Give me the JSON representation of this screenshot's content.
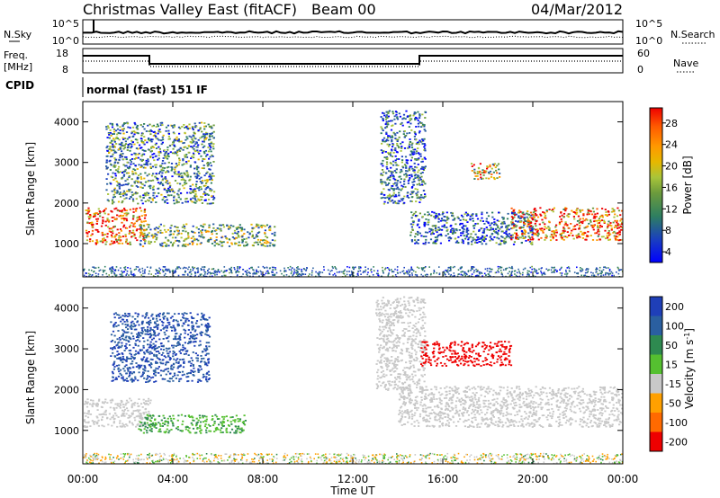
{
  "header": {
    "title": "Christmas Valley East (fitACF)",
    "beam": "Beam 00",
    "date": "04/Mar/2012"
  },
  "noise_panel": {
    "left_label": "N.Sky",
    "right_label": "N.Search",
    "left_ticks": [
      "10^5",
      "10^0"
    ],
    "right_ticks": [
      "10^5",
      "10^0"
    ]
  },
  "freq_panel": {
    "left_label_line1": "Freq.",
    "left_label_line2": "[MHz]",
    "right_label": "Nave",
    "left_ticks": [
      "18",
      "8"
    ],
    "right_ticks": [
      "60",
      "0"
    ]
  },
  "cpid": {
    "label": "CPID",
    "mode": "normal (fast) 151 IF"
  },
  "chart_data": [
    {
      "type": "heatmap",
      "name": "power",
      "ylabel": "Slant Range [km]",
      "xlabel": "",
      "xlim": [
        "00:00",
        "24:00"
      ],
      "ylim": [
        180,
        4500
      ],
      "yticks": [
        "1000",
        "2000",
        "3000",
        "4000"
      ],
      "colorbar": {
        "label": "Power [dB]",
        "ticks": [
          "4",
          "8",
          "12",
          "16",
          "20",
          "24",
          "28"
        ],
        "colors": [
          "#0000ff",
          "#1a3fbf",
          "#2a5fa0",
          "#2e7f60",
          "#6c9b3c",
          "#a8c43a",
          "#e6b800",
          "#ff9900",
          "#ff5a00",
          "#ee0000"
        ]
      },
      "regions": [
        {
          "t": [
            0.1,
            2.8
          ],
          "r": [
            1000,
            1900
          ],
          "level": 26
        },
        {
          "t": [
            1.0,
            5.8
          ],
          "r": [
            2000,
            4000
          ],
          "level": 12
        },
        {
          "t": [
            2.5,
            8.5
          ],
          "r": [
            950,
            1500
          ],
          "level": 15
        },
        {
          "t": [
            13.2,
            15.2
          ],
          "r": [
            2000,
            4300
          ],
          "level": 10
        },
        {
          "t": [
            17.2,
            18.5
          ],
          "r": [
            2600,
            3000
          ],
          "level": 20
        },
        {
          "t": [
            14.5,
            20.0
          ],
          "r": [
            1000,
            1800
          ],
          "level": 9
        },
        {
          "t": [
            19.0,
            24.0
          ],
          "r": [
            1100,
            1900
          ],
          "level": 25
        }
      ]
    },
    {
      "type": "heatmap",
      "name": "velocity",
      "ylabel": "Slant Range [km]",
      "xlabel": "Time UT",
      "xlim": [
        "00:00",
        "24:00"
      ],
      "ylim": [
        180,
        4500
      ],
      "yticks": [
        "1000",
        "2000",
        "3000",
        "4000"
      ],
      "xticks": [
        "00:00",
        "04:00",
        "08:00",
        "12:00",
        "16:00",
        "20:00",
        "00:00"
      ],
      "colorbar": {
        "label": "Velocity [m s^-1]",
        "ticks": [
          "200",
          "100",
          "50",
          "15",
          "-15",
          "-50",
          "-100",
          "-200"
        ],
        "colors": [
          "#1f3fb8",
          "#2a5fa0",
          "#2e8a50",
          "#55c030",
          "#c8c8c8",
          "#ffa000",
          "#ff6a00",
          "#ee0000"
        ]
      },
      "regions": [
        {
          "t": [
            0.0,
            3.0
          ],
          "r": [
            1100,
            1800
          ],
          "level": 0
        },
        {
          "t": [
            1.2,
            5.6
          ],
          "r": [
            2200,
            3900
          ],
          "level": 150
        },
        {
          "t": [
            2.4,
            7.2
          ],
          "r": [
            950,
            1400
          ],
          "level": 30
        },
        {
          "t": [
            13.0,
            15.2
          ],
          "r": [
            2000,
            4300
          ],
          "level": -5
        },
        {
          "t": [
            15.0,
            19.0
          ],
          "r": [
            2600,
            3200
          ],
          "level": -220
        },
        {
          "t": [
            14.0,
            24.0
          ],
          "r": [
            1100,
            2100
          ],
          "level": 0
        }
      ]
    }
  ]
}
